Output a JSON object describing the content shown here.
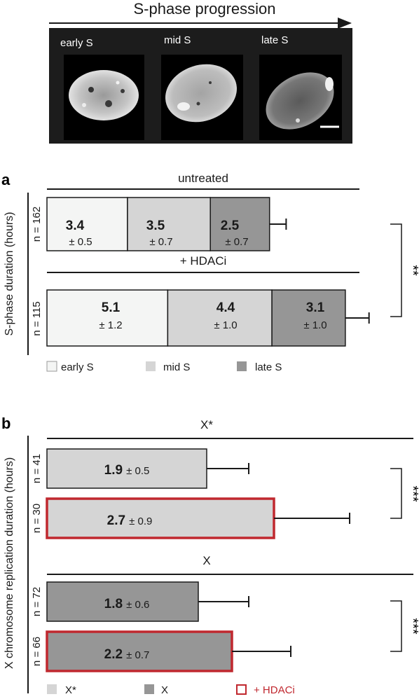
{
  "header": {
    "title": "S-phase progression",
    "images": [
      {
        "label": "early S"
      },
      {
        "label": "mid S"
      },
      {
        "label": "late S"
      }
    ]
  },
  "panel_a": {
    "letter": "a",
    "ylabel": "S-phase duration (hours)",
    "significance": "**",
    "groups": [
      {
        "title": "untreated",
        "n_label": "n = 162",
        "segments": [
          {
            "value": "3.4",
            "sd": "± 0.5"
          },
          {
            "value": "3.5",
            "sd": "± 0.7"
          },
          {
            "value": "2.5",
            "sd": "± 0.7"
          }
        ]
      },
      {
        "title": "+ HDACi",
        "n_label": "n = 115",
        "segments": [
          {
            "value": "5.1",
            "sd": "± 1.2"
          },
          {
            "value": "4.4",
            "sd": "± 1.0"
          },
          {
            "value": "3.1",
            "sd": "± 1.0"
          }
        ]
      }
    ],
    "legend": [
      {
        "label": "early S",
        "color": "#f4f5f4"
      },
      {
        "label": "mid S",
        "color": "#d5d5d5"
      },
      {
        "label": "late S",
        "color": "#969696"
      }
    ]
  },
  "panel_b": {
    "letter": "b",
    "ylabel": "X chromosome replication duration (hours)",
    "groups": [
      {
        "title": "X*",
        "significance": "***",
        "bars": [
          {
            "n_label": "n = 41",
            "value": "1.9",
            "sd": "± 0.5",
            "hdaci": false
          },
          {
            "n_label": "n = 30",
            "value": "2.7",
            "sd": "± 0.9",
            "hdaci": true
          }
        ]
      },
      {
        "title": "X",
        "significance": "***",
        "bars": [
          {
            "n_label": "n = 72",
            "value": "1.8",
            "sd": "± 0.6",
            "hdaci": false
          },
          {
            "n_label": "n = 66",
            "value": "2.2",
            "sd": "± 0.7",
            "hdaci": true
          }
        ]
      }
    ],
    "legend": [
      {
        "label": "X*",
        "color": "#d5d5d5",
        "outline": false
      },
      {
        "label": "X",
        "color": "#969696",
        "outline": false
      },
      {
        "label": "+ HDACi",
        "color": "#c0282f",
        "outline": true
      }
    ]
  },
  "chart_data": [
    {
      "type": "bar",
      "orientation": "horizontal",
      "stacked": true,
      "ylabel": "S-phase duration (hours)",
      "categories": [
        "untreated",
        "+ HDACi"
      ],
      "n": [
        162,
        115
      ],
      "series": [
        {
          "name": "early S",
          "values": [
            3.4,
            5.1
          ],
          "sd": [
            0.5,
            1.2
          ],
          "color": "#f4f5f4"
        },
        {
          "name": "mid S",
          "values": [
            3.5,
            4.4
          ],
          "sd": [
            0.7,
            1.0
          ],
          "color": "#d5d5d5"
        },
        {
          "name": "late S",
          "values": [
            2.5,
            3.1
          ],
          "sd": [
            0.7,
            1.0
          ],
          "color": "#969696"
        }
      ],
      "significance": "**"
    },
    {
      "type": "bar",
      "orientation": "horizontal",
      "ylabel": "X chromosome replication duration (hours)",
      "groups": [
        {
          "name": "X*",
          "color": "#d5d5d5",
          "significance": "***",
          "bars": [
            {
              "condition": "untreated",
              "n": 41,
              "value": 1.9,
              "sd": 0.5
            },
            {
              "condition": "+ HDACi",
              "n": 30,
              "value": 2.7,
              "sd": 0.9,
              "outline_color": "#c0282f"
            }
          ]
        },
        {
          "name": "X",
          "color": "#969696",
          "significance": "***",
          "bars": [
            {
              "condition": "untreated",
              "n": 72,
              "value": 1.8,
              "sd": 0.6
            },
            {
              "condition": "+ HDACi",
              "n": 66,
              "value": 2.2,
              "sd": 0.7,
              "outline_color": "#c0282f"
            }
          ]
        }
      ]
    }
  ]
}
